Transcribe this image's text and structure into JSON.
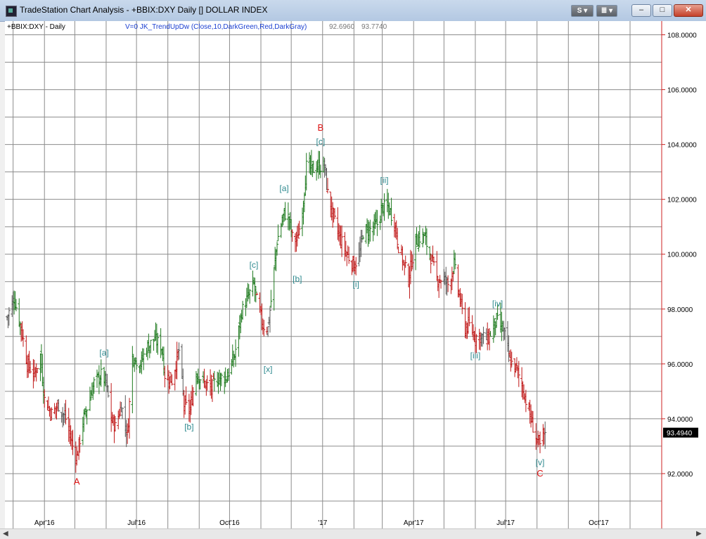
{
  "window": {
    "title": "TradeStation Chart Analysis - +BBIX:DXY Daily [] DOLLAR INDEX",
    "btn_s": "S ▾",
    "btn_symbol": "≣ ▾",
    "minimize": "–",
    "maximize": "□",
    "close": "✕"
  },
  "chart_header": {
    "symbol": "+BBIX:DXY - Daily",
    "indicator": "V=0  JK_TrendUpDw (Close,10,DarkGreen,Red,DarkGray)",
    "value1": "92.6960",
    "value2": "93.7740"
  },
  "colors": {
    "up": "#1e7a1e",
    "down": "#c01818",
    "neutral": "#5a5a5a",
    "grid": "#8c8c8c",
    "right_axis": "#cc2222",
    "wave_label": "#2f8a8f",
    "major_label": "#dd1111",
    "price_box": "#000000"
  },
  "chart_data": {
    "type": "ohlc",
    "y_range": [
      90.0,
      108.5
    ],
    "y_ticks": [
      "108.0000",
      "106.0000",
      "104.0000",
      "102.0000",
      "100.0000",
      "98.0000",
      "96.0000",
      "94.0000",
      "92.0000"
    ],
    "x_ticks": [
      "Apr'16",
      "Jul'16",
      "Oct'16",
      "'17",
      "Apr'17",
      "Jul'17",
      "Oct'17"
    ],
    "last_price": "93.4940",
    "price_anchors": [
      [
        "2016-02-24",
        97.7,
        "neutral"
      ],
      [
        "2016-03-02",
        98.4,
        "up"
      ],
      [
        "2016-03-09",
        97.3,
        "down"
      ],
      [
        "2016-03-15",
        96.0,
        "down"
      ],
      [
        "2016-03-22",
        95.6,
        "down"
      ],
      [
        "2016-03-28",
        96.3,
        "up"
      ],
      [
        "2016-04-01",
        94.7,
        "down"
      ],
      [
        "2016-04-08",
        94.2,
        "down"
      ],
      [
        "2016-04-15",
        94.5,
        "neutral"
      ],
      [
        "2016-04-22",
        94.0,
        "down"
      ],
      [
        "2016-04-29",
        93.0,
        "down"
      ],
      [
        "2016-05-03",
        92.6,
        "down"
      ],
      [
        "2016-05-09",
        93.9,
        "up"
      ],
      [
        "2016-05-13",
        94.4,
        "up"
      ],
      [
        "2016-05-20",
        95.3,
        "up"
      ],
      [
        "2016-05-27",
        95.6,
        "up"
      ],
      [
        "2016-06-01",
        95.3,
        "neutral"
      ],
      [
        "2016-06-06",
        94.0,
        "down"
      ],
      [
        "2016-06-10",
        93.7,
        "down"
      ],
      [
        "2016-06-16",
        94.5,
        "neutral"
      ],
      [
        "2016-06-22",
        93.4,
        "down"
      ],
      [
        "2016-06-27",
        96.3,
        "up"
      ],
      [
        "2016-07-05",
        96.0,
        "up"
      ],
      [
        "2016-07-11",
        96.6,
        "up"
      ],
      [
        "2016-07-19",
        96.9,
        "up"
      ],
      [
        "2016-07-26",
        96.6,
        "up"
      ],
      [
        "2016-07-29",
        95.6,
        "down"
      ],
      [
        "2016-08-05",
        95.4,
        "down"
      ],
      [
        "2016-08-12",
        96.5,
        "neutral"
      ],
      [
        "2016-08-17",
        94.5,
        "down"
      ],
      [
        "2016-08-23",
        94.3,
        "down"
      ],
      [
        "2016-08-29",
        95.7,
        "up"
      ],
      [
        "2016-09-06",
        95.3,
        "down"
      ],
      [
        "2016-09-13",
        95.1,
        "down"
      ],
      [
        "2016-09-16",
        95.3,
        "up"
      ],
      [
        "2016-09-21",
        95.5,
        "up"
      ],
      [
        "2016-09-28",
        95.5,
        "up"
      ],
      [
        "2016-10-06",
        96.3,
        "up"
      ],
      [
        "2016-10-13",
        97.9,
        "up"
      ],
      [
        "2016-10-20",
        98.5,
        "up"
      ],
      [
        "2016-10-25",
        98.9,
        "up"
      ],
      [
        "2016-10-28",
        98.3,
        "down"
      ],
      [
        "2016-11-03",
        97.4,
        "down"
      ],
      [
        "2016-11-08",
        97.3,
        "neutral"
      ],
      [
        "2016-11-11",
        98.3,
        "up"
      ],
      [
        "2016-11-17",
        100.5,
        "up"
      ],
      [
        "2016-11-24",
        101.5,
        "up"
      ],
      [
        "2016-11-29",
        101.3,
        "up"
      ],
      [
        "2016-12-02",
        100.6,
        "down"
      ],
      [
        "2016-12-07",
        100.5,
        "down"
      ],
      [
        "2016-12-12",
        101.6,
        "up"
      ],
      [
        "2016-12-16",
        103.2,
        "up"
      ],
      [
        "2016-12-23",
        103.1,
        "up"
      ],
      [
        "2016-12-28",
        103.2,
        "up"
      ],
      [
        "2017-01-03",
        103.2,
        "neutral"
      ],
      [
        "2017-01-06",
        102.2,
        "down"
      ],
      [
        "2017-01-12",
        101.3,
        "down"
      ],
      [
        "2017-01-18",
        100.6,
        "down"
      ],
      [
        "2017-01-25",
        100.0,
        "down"
      ],
      [
        "2017-02-01",
        99.6,
        "down"
      ],
      [
        "2017-02-06",
        99.9,
        "neutral"
      ],
      [
        "2017-02-10",
        100.8,
        "up"
      ],
      [
        "2017-02-17",
        100.9,
        "up"
      ],
      [
        "2017-02-24",
        101.1,
        "up"
      ],
      [
        "2017-03-01",
        101.7,
        "up"
      ],
      [
        "2017-03-07",
        101.7,
        "up"
      ],
      [
        "2017-03-13",
        101.2,
        "down"
      ],
      [
        "2017-03-17",
        100.3,
        "down"
      ],
      [
        "2017-03-22",
        99.7,
        "down"
      ],
      [
        "2017-03-27",
        99.1,
        "down"
      ],
      [
        "2017-04-03",
        100.5,
        "up"
      ],
      [
        "2017-04-11",
        100.7,
        "up"
      ],
      [
        "2017-04-18",
        99.9,
        "down"
      ],
      [
        "2017-04-24",
        99.1,
        "down"
      ],
      [
        "2017-05-01",
        99.1,
        "neutral"
      ],
      [
        "2017-05-05",
        98.9,
        "down"
      ],
      [
        "2017-05-11",
        99.6,
        "up"
      ],
      [
        "2017-05-15",
        98.7,
        "down"
      ],
      [
        "2017-05-22",
        97.3,
        "down"
      ],
      [
        "2017-05-26",
        97.4,
        "down"
      ],
      [
        "2017-06-01",
        97.0,
        "down"
      ],
      [
        "2017-06-07",
        97.0,
        "neutral"
      ],
      [
        "2017-06-13",
        96.9,
        "down"
      ],
      [
        "2017-06-16",
        97.1,
        "up"
      ],
      [
        "2017-06-22",
        97.6,
        "up"
      ],
      [
        "2017-06-29",
        97.2,
        "neutral"
      ],
      [
        "2017-07-05",
        96.1,
        "down"
      ],
      [
        "2017-07-12",
        95.8,
        "down"
      ],
      [
        "2017-07-18",
        95.1,
        "down"
      ],
      [
        "2017-07-25",
        94.1,
        "down"
      ],
      [
        "2017-08-01",
        93.2,
        "down"
      ],
      [
        "2017-08-04",
        93.0,
        "down"
      ],
      [
        "2017-08-09",
        93.5,
        "neutral"
      ]
    ],
    "wave_labels": [
      {
        "text": "A",
        "date": "2016-05-03",
        "price": 91.6,
        "major": true
      },
      {
        "text": "[a]",
        "date": "2016-05-30",
        "price": 96.3
      },
      {
        "text": "[b]",
        "date": "2016-08-22",
        "price": 93.6
      },
      {
        "text": "[c]",
        "date": "2016-10-25",
        "price": 99.5
      },
      {
        "text": "[x]",
        "date": "2016-11-08",
        "price": 95.7
      },
      {
        "text": "[a]",
        "date": "2016-11-24",
        "price": 102.3
      },
      {
        "text": "[b]",
        "date": "2016-12-07",
        "price": 99.0
      },
      {
        "text": "B",
        "date": "2016-12-30",
        "price": 104.5,
        "major": true
      },
      {
        "text": "[c]",
        "date": "2016-12-30",
        "price": 104.0
      },
      {
        "text": "[i]",
        "date": "2017-02-03",
        "price": 98.8
      },
      {
        "text": "[ii]",
        "date": "2017-03-03",
        "price": 102.6
      },
      {
        "text": "[iii]",
        "date": "2017-06-01",
        "price": 96.2
      },
      {
        "text": "[iv]",
        "date": "2017-06-23",
        "price": 98.1
      },
      {
        "text": "[v]",
        "date": "2017-08-04",
        "price": 92.3
      },
      {
        "text": "C",
        "date": "2017-08-04",
        "price": 91.9,
        "major": true
      }
    ]
  }
}
